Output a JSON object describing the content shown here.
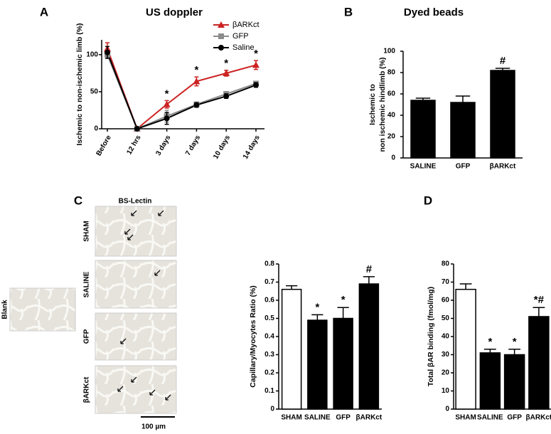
{
  "chart_data": [
    {
      "type": "line",
      "panel": "A",
      "title": "US doppler",
      "ylabel": "Ischemic to non-ischemic limb (%)",
      "categories": [
        "Before",
        "12 hrs",
        "3 days",
        "7 days",
        "10 days",
        "14 days"
      ],
      "series": [
        {
          "name": "βARKct",
          "color": "#cc2222",
          "marker": "triangle",
          "values": [
            108,
            0,
            33,
            64,
            75,
            86
          ],
          "errors": [
            8,
            1,
            5,
            6,
            4,
            6
          ]
        },
        {
          "name": "GFP",
          "color": "#8c8c8c",
          "marker": "square",
          "values": [
            100,
            0,
            17,
            33,
            47,
            61
          ],
          "errors": [
            5,
            1,
            8,
            2,
            3,
            3
          ]
        },
        {
          "name": "Saline",
          "color": "#000000",
          "marker": "circle",
          "values": [
            103,
            0,
            14,
            32,
            44,
            59
          ],
          "errors": [
            8,
            1,
            8,
            3,
            3,
            3
          ]
        }
      ],
      "annotations": [
        null,
        null,
        "*",
        "*",
        "*",
        "*"
      ],
      "ylim": [
        0,
        120
      ],
      "yticks": [
        0,
        50,
        100
      ],
      "legend": "top-right"
    },
    {
      "type": "bar",
      "panel": "B",
      "title": "Dyed beads",
      "ylabel": [
        "Ischemic to",
        "non ischemic hindlimb (%)"
      ],
      "categories": [
        "SALINE",
        "GFP",
        "βARKct"
      ],
      "values": [
        54,
        52,
        82
      ],
      "errors": [
        2,
        6,
        2
      ],
      "colors": [
        "#000000",
        "#000000",
        "#000000"
      ],
      "annotations": [
        null,
        null,
        "#"
      ],
      "ylim": [
        0,
        100
      ],
      "yticks": [
        0,
        20,
        40,
        60,
        80,
        100
      ]
    },
    {
      "type": "bar",
      "panel": "C",
      "ylabel": "Capillary/Myocytes Ratio (%)",
      "categories": [
        "SHAM",
        "SALINE",
        "GFP",
        "βARKct"
      ],
      "values": [
        0.66,
        0.49,
        0.5,
        0.69
      ],
      "errors": [
        0.02,
        0.03,
        0.06,
        0.04
      ],
      "colors": [
        "#ffffff",
        "#000000",
        "#000000",
        "#000000"
      ],
      "annotations": [
        null,
        "*",
        "*",
        "#"
      ],
      "ylim": [
        0,
        0.8
      ],
      "yticks": [
        0,
        0.1,
        0.2,
        0.3,
        0.4,
        0.5,
        0.6,
        0.7,
        0.8
      ]
    },
    {
      "type": "bar",
      "panel": "D",
      "ylabel": "Total βAR binding (fmol/mg)",
      "categories": [
        "SHAM",
        "SALINE",
        "GFP",
        "βARKct"
      ],
      "values": [
        66,
        31,
        30,
        51
      ],
      "errors": [
        3,
        2,
        3,
        5
      ],
      "colors": [
        "#ffffff",
        "#000000",
        "#000000",
        "#000000"
      ],
      "annotations": [
        null,
        "*",
        "*",
        "*#"
      ],
      "ylim": [
        0,
        80
      ],
      "yticks": [
        0,
        10,
        20,
        30,
        40,
        50,
        60,
        70,
        80
      ]
    }
  ],
  "figure": {
    "image_title": "BS-Lectin",
    "image_rows": [
      "SHAM",
      "SALINE",
      "GFP",
      "βARKct"
    ],
    "blank_label": "Blank",
    "scale_bar": "100 µm"
  }
}
